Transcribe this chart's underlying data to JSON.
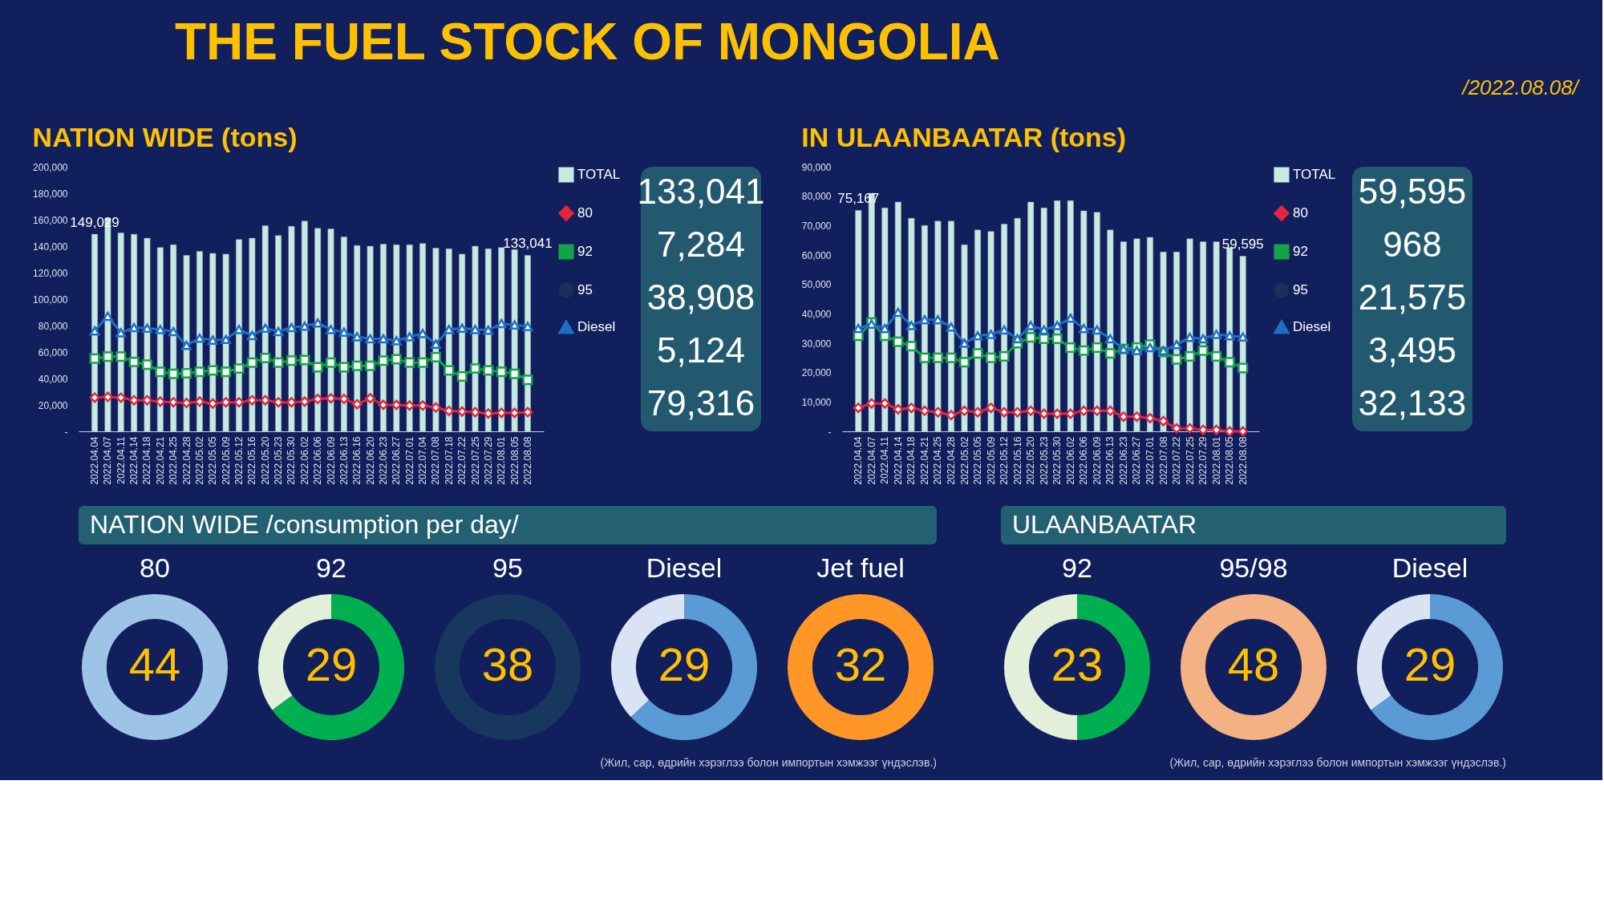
{
  "chart_data": [
    {
      "type": "other",
      "title": "THE FUEL STOCK OF MONGOLIA",
      "subtitle": "/2022.08.08/"
    },
    {
      "type": "bar",
      "title": "NATION WIDE (tons)",
      "categories": [
        "2022.04.04",
        "2022.04.07",
        "2022.04.11",
        "2022.04.14",
        "2022.04.18",
        "2022.04.21",
        "2022.04.25",
        "2022.04.28",
        "2022.05.02",
        "2022.05.05",
        "2022.05.09",
        "2022.05.12",
        "2022.05.16",
        "2022.05.20",
        "2022.05.23",
        "2022.05.30",
        "2022.06.02",
        "2022.06.06",
        "2022.06.09",
        "2022.06.13",
        "2022.06.16",
        "2022.06.20",
        "2022.06.23",
        "2022.06.27",
        "2022.07.01",
        "2022.07.04",
        "2022.07.08",
        "2022.07.18",
        "2022.07.22",
        "2022.07.25",
        "2022.07.29",
        "2022.08.01",
        "2022.08.05",
        "2022.08.08"
      ],
      "series": [
        {
          "name": "TOTAL",
          "type": "bar",
          "color": "#c6e9e2",
          "values": [
            149029,
            161000,
            150000,
            149000,
            146000,
            139000,
            141000,
            133000,
            136000,
            134500,
            134000,
            145000,
            146000,
            155500,
            148000,
            155000,
            159000,
            153500,
            153000,
            147000,
            140500,
            140000,
            141500,
            141000,
            141000,
            142000,
            138500,
            138000,
            134000,
            140000,
            138000,
            139000,
            137500,
            133041
          ],
          "value_labels": [
            "149,029",
            null,
            null,
            null,
            null,
            null,
            null,
            null,
            null,
            null,
            null,
            null,
            null,
            null,
            null,
            null,
            null,
            null,
            null,
            null,
            null,
            null,
            null,
            null,
            null,
            null,
            null,
            null,
            null,
            null,
            null,
            null,
            null,
            "133,041"
          ]
        },
        {
          "name": "80",
          "type": "line",
          "color": "#e3263f",
          "marker": "diamond",
          "line_style": "solid",
          "values": [
            25500,
            26000,
            25500,
            23500,
            23500,
            22500,
            22000,
            21500,
            22500,
            21000,
            22000,
            22000,
            23500,
            23500,
            22000,
            22000,
            22500,
            24500,
            25000,
            24500,
            20500,
            25000,
            20000,
            20000,
            19500,
            19500,
            18000,
            15500,
            15000,
            14500,
            13500,
            14000,
            14000,
            14500
          ]
        },
        {
          "name": "92",
          "type": "line",
          "color": "#13a44a",
          "marker": "square",
          "line_style": "solid",
          "values": [
            55000,
            56500,
            56500,
            52500,
            50500,
            45000,
            43500,
            44000,
            45000,
            46000,
            45000,
            47500,
            52000,
            55500,
            52000,
            53500,
            54000,
            48500,
            52000,
            48500,
            49500,
            49500,
            53500,
            54500,
            52000,
            52000,
            56000,
            46000,
            41500,
            47500,
            46000,
            45000,
            43500,
            38908
          ]
        },
        {
          "name": "95",
          "type": "line",
          "color": "#1a2f5a",
          "marker": "circle",
          "line_style": "solid",
          "values": [
            null,
            null,
            null,
            null,
            null,
            null,
            null,
            null,
            null,
            null,
            null,
            null,
            null,
            null,
            null,
            null,
            null,
            null,
            null,
            null,
            null,
            null,
            null,
            null,
            null,
            null,
            null,
            null,
            null,
            null,
            null,
            null,
            null,
            null
          ]
        },
        {
          "name": "Diesel",
          "type": "line",
          "color": "#1f6fc4",
          "marker": "triangle",
          "line_style": "solid",
          "values": [
            76000,
            87000,
            74500,
            78500,
            78000,
            77000,
            75500,
            65000,
            70500,
            69000,
            69500,
            77000,
            72500,
            78000,
            75500,
            78500,
            79500,
            82000,
            77000,
            75000,
            71500,
            70000,
            70000,
            68500,
            71500,
            74000,
            66000,
            77000,
            78000,
            77000,
            76500,
            81500,
            80500,
            79316
          ]
        }
      ],
      "ylim": [
        0,
        200000
      ],
      "yticks": [
        {
          "value": 0,
          "label": "-"
        },
        {
          "value": 20000,
          "label": "20,000"
        },
        {
          "value": 40000,
          "label": "40,000"
        },
        {
          "value": 60000,
          "label": "60,000"
        },
        {
          "value": 80000,
          "label": "80,000"
        },
        {
          "value": 100000,
          "label": "100,000"
        },
        {
          "value": 120000,
          "label": "120,000"
        },
        {
          "value": 140000,
          "label": "140,000"
        },
        {
          "value": 160000,
          "label": "160,000"
        },
        {
          "value": 180000,
          "label": "180,000"
        },
        {
          "value": 200000,
          "label": "200,000"
        }
      ],
      "legend": "right",
      "annotations": [
        "133,041",
        "7,284",
        "38,908",
        "5,124",
        "79,316"
      ]
    },
    {
      "type": "bar",
      "title": "IN ULAANBAATAR (tons)",
      "categories": [
        "2022.04.04",
        "2022.04.07",
        "2022.04.11",
        "2022.04.14",
        "2022.04.18",
        "2022.04.21",
        "2022.04.25",
        "2022.04.28",
        "2022.05.02",
        "2022.05.05",
        "2022.05.09",
        "2022.05.12",
        "2022.05.16",
        "2022.05.20",
        "2022.05.23",
        "2022.05.30",
        "2022.06.02",
        "2022.06.06",
        "2022.06.09",
        "2022.06.13",
        "2022.06.23",
        "2022.06.27",
        "2022.07.01",
        "2022.07.08",
        "2022.07.22",
        "2022.07.25",
        "2022.07.29",
        "2022.08.01",
        "2022.08.05",
        "2022.08.08"
      ],
      "series": [
        {
          "name": "TOTAL",
          "type": "bar",
          "color": "#c6e9e2",
          "values": [
            75167,
            81000,
            76000,
            78000,
            72500,
            70000,
            71500,
            71500,
            63500,
            68500,
            68000,
            70500,
            72500,
            78000,
            76000,
            78500,
            78500,
            75000,
            74500,
            68500,
            64500,
            65500,
            66000,
            61000,
            61000,
            65500,
            64500,
            64500,
            62500,
            59595
          ],
          "value_labels": [
            "75,167",
            null,
            null,
            null,
            null,
            null,
            null,
            null,
            null,
            null,
            null,
            null,
            null,
            null,
            null,
            null,
            null,
            null,
            null,
            null,
            null,
            null,
            null,
            null,
            null,
            null,
            null,
            null,
            null,
            "59,595"
          ]
        },
        {
          "name": "80",
          "type": "line",
          "color": "#e3263f",
          "marker": "diamond",
          "line_style": "solid",
          "values": [
            8000,
            9500,
            9500,
            7500,
            8000,
            7000,
            6500,
            5500,
            7000,
            6500,
            8000,
            6500,
            6500,
            7000,
            6000,
            6000,
            6000,
            7000,
            7000,
            7000,
            5000,
            5000,
            4500,
            3500,
            1000,
            1000,
            500,
            500,
            0,
            0
          ]
        },
        {
          "name": "92",
          "type": "line",
          "color": "#13a44a",
          "marker": "square",
          "line_style": "solid",
          "values": [
            32500,
            37000,
            32500,
            30500,
            29000,
            25000,
            25000,
            25000,
            23500,
            26500,
            25000,
            25500,
            30000,
            32000,
            31500,
            31500,
            28500,
            27500,
            28500,
            26500,
            28000,
            28500,
            29500,
            27000,
            24500,
            25500,
            27500,
            25500,
            23500,
            21575
          ]
        },
        {
          "name": "95",
          "type": "line",
          "color": "#1a2f5a",
          "marker": "circle",
          "line_style": "solid",
          "values": [
            null,
            null,
            null,
            null,
            null,
            null,
            null,
            null,
            null,
            null,
            null,
            null,
            null,
            null,
            null,
            null,
            null,
            null,
            null,
            null,
            null,
            null,
            null,
            null,
            null,
            null,
            null,
            null,
            null,
            null
          ]
        },
        {
          "name": "Diesel",
          "type": "line",
          "color": "#1f6fc4",
          "marker": "triangle",
          "line_style": "solid",
          "values": [
            35000,
            36500,
            35000,
            40500,
            36000,
            38000,
            38000,
            35500,
            30000,
            32500,
            33000,
            34500,
            31500,
            36000,
            34500,
            36000,
            38500,
            35000,
            34500,
            31500,
            28000,
            27500,
            28500,
            27500,
            29500,
            32000,
            31500,
            33000,
            32500,
            32133
          ]
        }
      ],
      "ylim": [
        0,
        90000
      ],
      "yticks": [
        {
          "value": 0,
          "label": "-"
        },
        {
          "value": 10000,
          "label": "10,000"
        },
        {
          "value": 20000,
          "label": "20,000"
        },
        {
          "value": 30000,
          "label": "30,000"
        },
        {
          "value": 40000,
          "label": "40,000"
        },
        {
          "value": 50000,
          "label": "50,000"
        },
        {
          "value": 60000,
          "label": "60,000"
        },
        {
          "value": 70000,
          "label": "70,000"
        },
        {
          "value": 80000,
          "label": "80,000"
        },
        {
          "value": 90000,
          "label": "90,000"
        }
      ],
      "legend": "right",
      "annotations": [
        "59,595",
        "968",
        "21,575",
        "3,495",
        "32,133"
      ]
    },
    {
      "type": "other",
      "title": "NATION WIDE /consumption per day/",
      "annotations": [
        "(Жил, сар, өдрийн хэрэглээ болон импортын хэмжээг үндэслэв.)"
      ]
    },
    {
      "type": "donut",
      "title": "80",
      "categories": [
        null
      ],
      "values": [
        100
      ],
      "colors": [
        "#9dc3e6"
      ],
      "annotations": [
        "44"
      ]
    },
    {
      "type": "donut",
      "title": "92",
      "categories": [
        null,
        null
      ],
      "values": [
        65,
        35
      ],
      "colors": [
        "#00b050",
        "#e2f0d9"
      ],
      "annotations": [
        "29"
      ]
    },
    {
      "type": "donut",
      "title": "95",
      "categories": [
        null
      ],
      "values": [
        100
      ],
      "colors": [
        "#17375e"
      ],
      "annotations": [
        "38"
      ]
    },
    {
      "type": "donut",
      "title": "Diesel",
      "categories": [
        null,
        null
      ],
      "values": [
        63,
        37
      ],
      "colors": [
        "#5b9bd5",
        "#dae3f3"
      ],
      "annotations": [
        "29"
      ]
    },
    {
      "type": "donut",
      "title": "Jet fuel",
      "categories": [
        null
      ],
      "values": [
        100
      ],
      "colors": [
        "#ff9626"
      ],
      "annotations": [
        "32"
      ]
    },
    {
      "type": "other",
      "title": "ULAANBAATAR",
      "annotations": [
        "(Жил, сар, өдрийн хэрэглээ болон импортын хэмжээг үндэслэв.)"
      ]
    },
    {
      "type": "donut",
      "title": "92",
      "categories": [
        null,
        null
      ],
      "values": [
        50,
        50
      ],
      "colors": [
        "#00b050",
        "#e2f0d9"
      ],
      "annotations": [
        "23"
      ]
    },
    {
      "type": "donut",
      "title": "95/98",
      "categories": [
        null
      ],
      "values": [
        100
      ],
      "colors": [
        "#f4b183"
      ],
      "annotations": [
        "48"
      ]
    },
    {
      "type": "donut",
      "title": "Diesel",
      "categories": [
        null,
        null
      ],
      "values": [
        65,
        35
      ],
      "colors": [
        "#5b9bd5",
        "#dae3f3"
      ],
      "annotations": [
        "29"
      ]
    }
  ]
}
